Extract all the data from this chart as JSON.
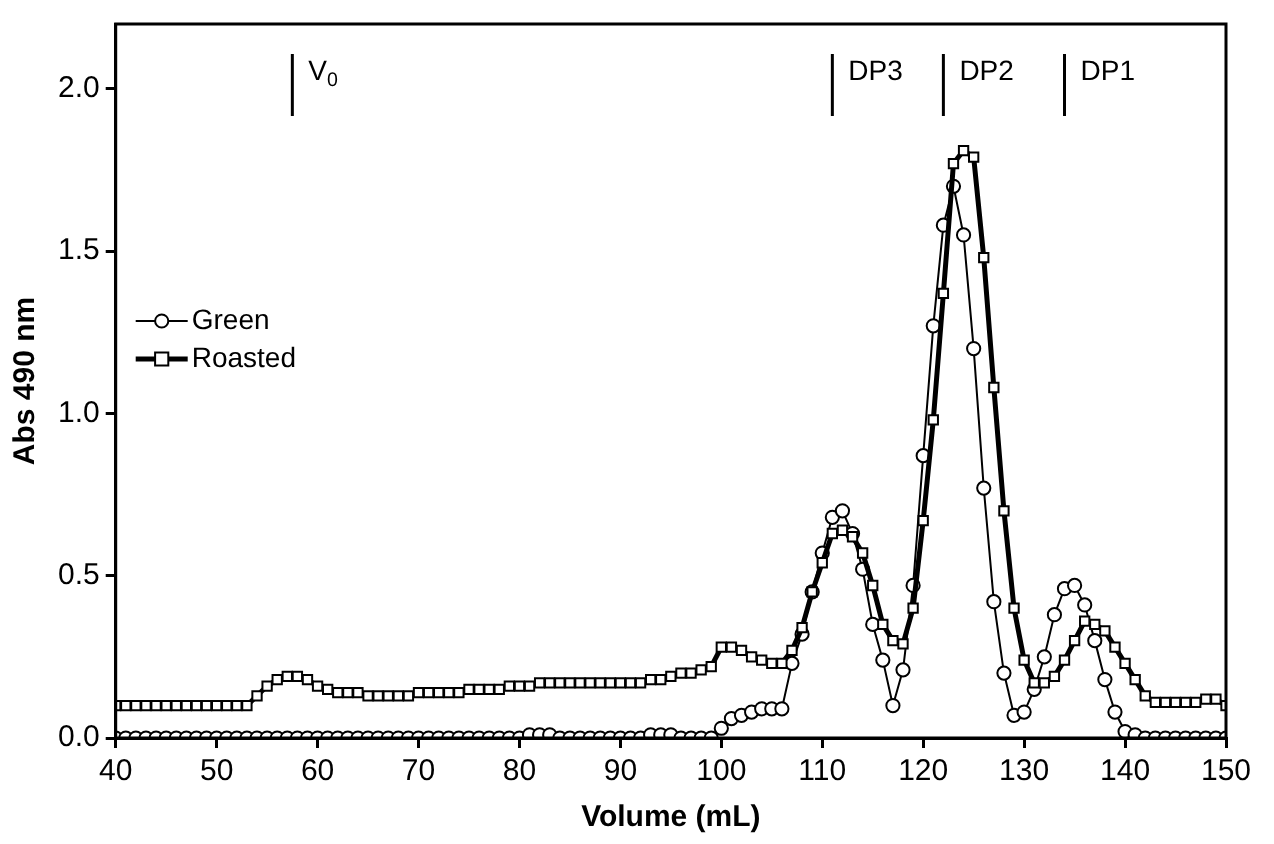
{
  "chart_data": {
    "type": "line",
    "xlabel": "Volume (mL)",
    "ylabel": "Abs 490 nm",
    "x": [
      40,
      41,
      42,
      43,
      44,
      45,
      46,
      47,
      48,
      49,
      50,
      51,
      52,
      53,
      54,
      55,
      56,
      57,
      58,
      59,
      60,
      61,
      62,
      63,
      64,
      65,
      66,
      67,
      68,
      69,
      70,
      71,
      72,
      73,
      74,
      75,
      76,
      77,
      78,
      79,
      80,
      81,
      82,
      83,
      84,
      85,
      86,
      87,
      88,
      89,
      90,
      91,
      92,
      93,
      94,
      95,
      96,
      97,
      98,
      99,
      100,
      101,
      102,
      103,
      104,
      105,
      106,
      107,
      108,
      109,
      110,
      111,
      112,
      113,
      114,
      115,
      116,
      117,
      118,
      119,
      120,
      121,
      122,
      123,
      124,
      125,
      126,
      127,
      128,
      129,
      130,
      131,
      132,
      133,
      134,
      135,
      136,
      137,
      138,
      139,
      140,
      141,
      142,
      143,
      144,
      145,
      146,
      147,
      148,
      149,
      150
    ],
    "series": [
      {
        "name": "Green",
        "color": "#000000",
        "marker": "circle",
        "values": [
          0,
          0,
          0,
          0,
          0,
          0,
          0,
          0,
          0,
          0,
          0,
          0,
          0,
          0,
          0,
          0,
          0,
          0,
          0,
          0,
          0,
          0,
          0,
          0,
          0,
          0,
          0,
          0,
          0,
          0,
          0,
          0,
          0,
          0,
          0,
          0,
          0,
          0,
          0,
          0,
          0,
          0.01,
          0.01,
          0.01,
          0,
          0,
          0,
          0,
          0,
          0,
          0,
          0,
          0,
          0.01,
          0.01,
          0.01,
          0,
          0,
          0,
          0,
          0.03,
          0.06,
          0.07,
          0.08,
          0.09,
          0.09,
          0.09,
          0.23,
          0.32,
          0.45,
          0.57,
          0.68,
          0.7,
          0.63,
          0.52,
          0.35,
          0.24,
          0.1,
          0.21,
          0.47,
          0.87,
          1.27,
          1.58,
          1.7,
          1.55,
          1.2,
          0.77,
          0.42,
          0.2,
          0.07,
          0.08,
          0.15,
          0.25,
          0.38,
          0.46,
          0.47,
          0.41,
          0.3,
          0.18,
          0.08,
          0.02,
          0.01,
          0,
          0,
          0,
          0,
          0,
          0,
          0,
          0,
          0
        ]
      },
      {
        "name": "Roasted",
        "color": "#000000",
        "marker": "square",
        "values": [
          0.1,
          0.1,
          0.1,
          0.1,
          0.1,
          0.1,
          0.1,
          0.1,
          0.1,
          0.1,
          0.1,
          0.1,
          0.1,
          0.1,
          0.13,
          0.16,
          0.18,
          0.19,
          0.19,
          0.18,
          0.16,
          0.15,
          0.14,
          0.14,
          0.14,
          0.13,
          0.13,
          0.13,
          0.13,
          0.13,
          0.14,
          0.14,
          0.14,
          0.14,
          0.14,
          0.15,
          0.15,
          0.15,
          0.15,
          0.16,
          0.16,
          0.16,
          0.17,
          0.17,
          0.17,
          0.17,
          0.17,
          0.17,
          0.17,
          0.17,
          0.17,
          0.17,
          0.17,
          0.18,
          0.18,
          0.19,
          0.2,
          0.2,
          0.21,
          0.22,
          0.28,
          0.28,
          0.27,
          0.25,
          0.24,
          0.23,
          0.23,
          0.27,
          0.34,
          0.45,
          0.54,
          0.63,
          0.64,
          0.62,
          0.57,
          0.47,
          0.35,
          0.3,
          0.29,
          0.4,
          0.67,
          0.98,
          1.37,
          1.77,
          1.81,
          1.79,
          1.48,
          1.08,
          0.7,
          0.4,
          0.24,
          0.17,
          0.17,
          0.19,
          0.24,
          0.3,
          0.36,
          0.35,
          0.33,
          0.28,
          0.23,
          0.18,
          0.13,
          0.11,
          0.11,
          0.11,
          0.11,
          0.11,
          0.12,
          0.12,
          0.1
        ]
      }
    ],
    "xlim": [
      40,
      150
    ],
    "xticks": [
      40,
      50,
      60,
      70,
      80,
      90,
      100,
      110,
      120,
      130,
      140,
      150
    ],
    "ylim": [
      0,
      2.2
    ],
    "yticks": [
      {
        "value": 0,
        "label": "0.0"
      },
      {
        "value": 0.5,
        "label": "0.5"
      },
      {
        "value": 1,
        "label": "1.0"
      },
      {
        "value": 1.5,
        "label": "1.5"
      },
      {
        "value": 2,
        "label": "2.0"
      }
    ],
    "ref_lines": [
      {
        "axis": "x",
        "value": 57.5,
        "label": "V$_{0}$"
      },
      {
        "axis": "x",
        "value": 111,
        "label": "DP3"
      },
      {
        "axis": "x",
        "value": 122,
        "label": "DP2"
      },
      {
        "axis": "x",
        "value": 134,
        "label": "DP1"
      }
    ],
    "grid": false,
    "legend": "left",
    "line_style": "solid"
  }
}
